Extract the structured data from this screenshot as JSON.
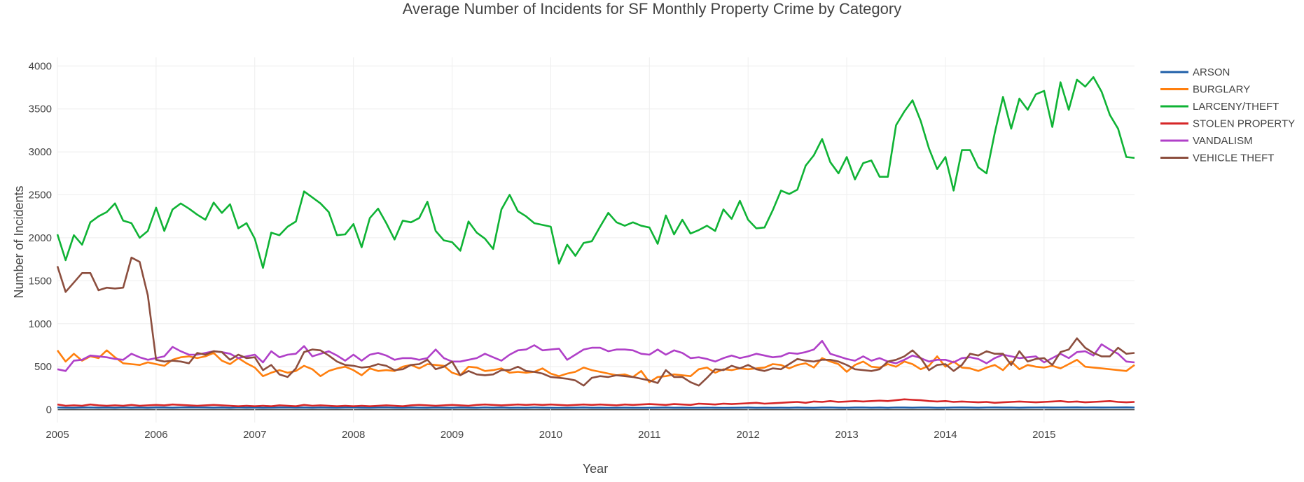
{
  "chart_data": {
    "type": "line",
    "title": "Average Number of Incidents for SF Monthly Property Crime by Category",
    "xlabel": "Year",
    "ylabel": "Number of Incidents",
    "x_start": "2005-01",
    "x_end": "2015-12",
    "xlim": [
      "2005-01",
      "2015-12"
    ],
    "ylim": [
      -150,
      4100
    ],
    "x_ticks": [
      "2005",
      "2006",
      "2007",
      "2008",
      "2009",
      "2010",
      "2011",
      "2012",
      "2013",
      "2014",
      "2015"
    ],
    "y_ticks": [
      0,
      500,
      1000,
      1500,
      2000,
      2500,
      3000,
      3500,
      4000
    ],
    "y_tick_labels": [
      "0",
      "500",
      "1000",
      "1500",
      "2000",
      "2500",
      "3000",
      "3500",
      "4000"
    ],
    "grid": true,
    "legend_position": "top-right",
    "series": [
      {
        "name": "ARSON",
        "color": "#1f5fa8",
        "values": [
          25,
          23,
          22,
          24,
          25,
          23,
          24,
          22,
          25,
          23,
          24,
          22,
          26,
          24,
          23,
          25,
          27,
          25,
          24,
          23,
          24,
          22,
          25,
          23,
          24,
          22,
          23,
          24,
          25,
          23,
          24,
          22,
          24,
          23,
          22,
          24,
          25,
          23,
          22,
          24,
          25,
          23,
          22,
          24,
          23,
          22,
          24,
          23,
          22,
          24,
          23,
          22,
          25,
          23,
          24,
          22,
          23,
          22,
          24,
          23,
          22,
          21,
          22,
          23,
          24,
          22,
          23,
          21,
          22,
          23,
          22,
          21,
          22,
          23,
          24,
          22,
          23,
          21,
          22,
          23,
          22,
          21,
          22,
          23,
          24,
          22,
          23,
          22,
          23,
          22,
          24,
          23,
          22,
          24,
          25,
          23,
          22,
          24,
          25,
          23,
          24,
          22,
          25,
          24,
          23,
          25,
          24,
          22,
          23,
          25,
          26,
          24,
          23,
          25,
          26,
          24,
          25,
          23,
          24,
          25,
          26,
          24,
          25,
          26,
          27,
          25,
          26,
          24,
          25,
          26,
          27,
          25
        ]
      },
      {
        "name": "BURGLARY",
        "color": "#ff7f0e",
        "values": [
          690,
          560,
          650,
          570,
          620,
          600,
          690,
          610,
          540,
          530,
          520,
          550,
          530,
          510,
          580,
          610,
          620,
          600,
          620,
          660,
          570,
          530,
          600,
          540,
          490,
          390,
          430,
          460,
          430,
          450,
          510,
          470,
          390,
          450,
          480,
          500,
          460,
          400,
          480,
          450,
          460,
          450,
          500,
          520,
          480,
          530,
          520,
          510,
          430,
          400,
          500,
          490,
          450,
          460,
          480,
          430,
          440,
          430,
          440,
          480,
          420,
          390,
          420,
          440,
          490,
          460,
          440,
          420,
          400,
          410,
          380,
          450,
          320,
          380,
          390,
          410,
          400,
          390,
          470,
          490,
          430,
          470,
          460,
          480,
          470,
          480,
          490,
          530,
          520,
          480,
          520,
          540,
          490,
          600,
          560,
          530,
          440,
          520,
          560,
          500,
          490,
          530,
          500,
          560,
          530,
          470,
          510,
          620,
          500,
          560,
          490,
          480,
          450,
          490,
          520,
          460,
          560,
          470,
          520,
          500,
          490,
          510,
          480,
          530,
          580,
          500,
          490,
          480,
          470,
          460,
          450,
          520
        ]
      },
      {
        "name": "LARCENY/THEFT",
        "color": "#0fb335",
        "values": [
          2040,
          1740,
          2030,
          1920,
          2180,
          2250,
          2300,
          2400,
          2200,
          2170,
          2000,
          2080,
          2350,
          2080,
          2330,
          2400,
          2340,
          2270,
          2210,
          2410,
          2290,
          2390,
          2110,
          2170,
          1990,
          1650,
          2060,
          2030,
          2130,
          2190,
          2540,
          2470,
          2400,
          2300,
          2030,
          2040,
          2160,
          1890,
          2230,
          2340,
          2170,
          1980,
          2200,
          2180,
          2230,
          2420,
          2080,
          1970,
          1950,
          1850,
          2190,
          2060,
          1990,
          1870,
          2330,
          2500,
          2310,
          2250,
          2170,
          2150,
          2130,
          1700,
          1920,
          1790,
          1940,
          1960,
          2130,
          2290,
          2180,
          2140,
          2180,
          2140,
          2120,
          1930,
          2260,
          2040,
          2210,
          2050,
          2090,
          2140,
          2080,
          2330,
          2220,
          2430,
          2210,
          2110,
          2120,
          2320,
          2550,
          2510,
          2560,
          2840,
          2960,
          3150,
          2880,
          2750,
          2940,
          2680,
          2870,
          2900,
          2710,
          2710,
          3310,
          3470,
          3600,
          3360,
          3040,
          2800,
          2940,
          2550,
          3020,
          3020,
          2820,
          2750,
          3220,
          3640,
          3270,
          3620,
          3490,
          3670,
          3710,
          3290,
          3810,
          3490,
          3840,
          3760,
          3870,
          3700,
          3430,
          3270,
          2940,
          2930
        ]
      },
      {
        "name": "STOLEN PROPERTY",
        "color": "#d62728",
        "values": [
          60,
          45,
          50,
          45,
          60,
          50,
          45,
          50,
          45,
          55,
          45,
          50,
          55,
          50,
          60,
          55,
          50,
          45,
          50,
          55,
          50,
          45,
          40,
          45,
          40,
          45,
          40,
          50,
          45,
          40,
          55,
          45,
          50,
          45,
          40,
          45,
          40,
          45,
          40,
          45,
          50,
          45,
          40,
          50,
          55,
          50,
          45,
          50,
          55,
          50,
          45,
          55,
          60,
          55,
          50,
          55,
          60,
          55,
          60,
          55,
          60,
          55,
          50,
          55,
          60,
          55,
          60,
          55,
          50,
          60,
          55,
          60,
          65,
          60,
          55,
          65,
          60,
          55,
          70,
          65,
          60,
          70,
          65,
          70,
          75,
          80,
          70,
          75,
          80,
          85,
          90,
          80,
          95,
          90,
          100,
          90,
          95,
          100,
          95,
          100,
          105,
          100,
          110,
          120,
          115,
          110,
          100,
          95,
          100,
          90,
          95,
          90,
          85,
          90,
          80,
          85,
          90,
          95,
          90,
          85,
          90,
          95,
          100,
          90,
          95,
          85,
          90,
          95,
          100,
          90,
          85,
          90
        ]
      },
      {
        "name": "VANDALISM",
        "color": "#b040c8",
        "values": [
          470,
          450,
          570,
          580,
          630,
          620,
          610,
          590,
          580,
          650,
          610,
          580,
          600,
          620,
          730,
          680,
          640,
          640,
          660,
          680,
          670,
          650,
          600,
          620,
          640,
          550,
          680,
          610,
          640,
          650,
          740,
          620,
          650,
          680,
          630,
          570,
          640,
          570,
          640,
          660,
          630,
          580,
          600,
          600,
          580,
          600,
          700,
          600,
          560,
          560,
          580,
          600,
          650,
          610,
          570,
          640,
          690,
          700,
          750,
          690,
          700,
          710,
          580,
          640,
          700,
          720,
          720,
          680,
          700,
          700,
          690,
          650,
          640,
          700,
          640,
          690,
          660,
          600,
          610,
          590,
          560,
          600,
          630,
          600,
          620,
          650,
          630,
          610,
          620,
          660,
          650,
          670,
          700,
          800,
          650,
          620,
          590,
          570,
          620,
          570,
          600,
          560,
          540,
          580,
          630,
          600,
          560,
          580,
          580,
          550,
          600,
          610,
          590,
          540,
          600,
          640,
          620,
          600,
          610,
          620,
          550,
          600,
          650,
          600,
          670,
          680,
          630,
          760,
          700,
          650,
          560,
          550
        ]
      },
      {
        "name": "VEHICLE THEFT",
        "color": "#8c4e3e",
        "values": [
          1670,
          1370,
          1480,
          1590,
          1590,
          1390,
          1420,
          1410,
          1420,
          1770,
          1720,
          1330,
          580,
          560,
          570,
          560,
          540,
          660,
          640,
          680,
          670,
          580,
          640,
          600,
          610,
          460,
          520,
          410,
          380,
          480,
          670,
          700,
          690,
          630,
          560,
          520,
          510,
          490,
          500,
          530,
          510,
          460,
          470,
          520,
          530,
          580,
          470,
          500,
          560,
          400,
          450,
          410,
          400,
          410,
          460,
          460,
          500,
          450,
          440,
          420,
          380,
          370,
          360,
          340,
          280,
          370,
          390,
          380,
          400,
          390,
          380,
          360,
          340,
          310,
          460,
          380,
          380,
          320,
          280,
          370,
          470,
          460,
          510,
          480,
          520,
          470,
          450,
          480,
          470,
          530,
          590,
          570,
          560,
          580,
          580,
          560,
          520,
          470,
          460,
          450,
          470,
          560,
          580,
          620,
          690,
          600,
          460,
          520,
          530,
          450,
          520,
          650,
          630,
          680,
          650,
          650,
          520,
          680,
          560,
          590,
          600,
          520,
          670,
          700,
          830,
          720,
          660,
          620,
          620,
          720,
          650,
          660
        ]
      }
    ]
  }
}
